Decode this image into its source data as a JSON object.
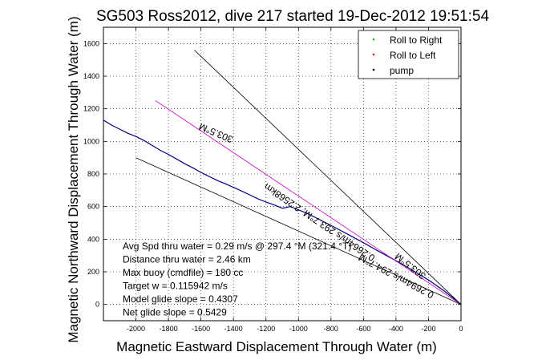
{
  "chart_data": {
    "type": "line",
    "title": "SG503 Ross2012, dive 217 started 19-Dec-2012 19:51:54",
    "xlabel": "Magnetic Eastward Displacement Through Water (m)",
    "ylabel": "Magnetic Northward Displacement Through Water (m)",
    "xlim": [
      -2200,
      0
    ],
    "ylim": [
      -100,
      1700
    ],
    "xticks": [
      -2000,
      -1800,
      -1600,
      -1400,
      -1200,
      -1000,
      -800,
      -600,
      -400,
      -200,
      0
    ],
    "yticks": [
      0,
      200,
      400,
      600,
      800,
      1000,
      1200,
      1400,
      1600
    ],
    "grid": true,
    "legend_position": "top-right",
    "legend": [
      {
        "label": "Roll to Right",
        "color": "#00cc00",
        "marker": "."
      },
      {
        "label": "Roll to Left",
        "color": "#ff0000",
        "marker": "."
      },
      {
        "label": "pump",
        "color": "#000000",
        "marker": "."
      }
    ],
    "series": [
      {
        "color": "#000080",
        "role": "track",
        "x": [
          -2200,
          -2150,
          -2100,
          -2050,
          -2000,
          -1950,
          -1900,
          -1850,
          -1800,
          -1750,
          -1700,
          -1650,
          -1600,
          -1550,
          -1500,
          -1450,
          -1400,
          -1350,
          -1300,
          -1250,
          -1200,
          -1150,
          -1100,
          -1050,
          -1000,
          -950,
          -900,
          -850,
          -800,
          -750,
          -700,
          -650,
          -600,
          -550,
          -500,
          -450,
          -400,
          -350,
          -300,
          -250,
          -200,
          -150,
          -100,
          -50,
          0
        ],
        "y": [
          1130,
          1100,
          1075,
          1050,
          1030,
          1005,
          975,
          945,
          920,
          892,
          863,
          838,
          810,
          785,
          760,
          740,
          718,
          695,
          672,
          648,
          628,
          610,
          590,
          600,
          580,
          560,
          535,
          510,
          485,
          458,
          432,
          405,
          378,
          350,
          322,
          295,
          268,
          240,
          210,
          180,
          150,
          115,
          80,
          40,
          0
        ]
      },
      {
        "color": "#cc00cc",
        "role": "heading",
        "x": [
          -1880,
          0
        ],
        "y": [
          1250,
          0
        ]
      },
      {
        "color": "#000000",
        "role": "heading",
        "x": [
          -1640,
          0
        ],
        "y": [
          1560,
          0
        ]
      },
      {
        "color": "#000000",
        "role": "heading",
        "x": [
          -2000,
          0
        ],
        "y": [
          900,
          0
        ]
      }
    ],
    "annotations": [
      {
        "text": "303.5°M",
        "x": -1500,
        "y": 1070,
        "angle": 23
      },
      {
        "text": "0.2664m/s 293.7°M, 2.2568km",
        "x": -860,
        "y": 520,
        "angle": 34
      },
      {
        "text": "303.5°M",
        "x": -300,
        "y": 250,
        "angle": 38
      },
      {
        "text": "0.2694m/s 294.7°M",
        "x": -390,
        "y": 190,
        "angle": 28
      }
    ],
    "stats": [
      "Avg Spd thru water =  0.29 m/s @ 297.4    °M (321.4 °T)",
      "Distance thru water =  2.46 km",
      "Max buoy (cmdfile) = 180 cc",
      "Target w = 0.115942 m/s",
      "Model glide slope = 0.4307",
      "Net glide slope = 0.5429"
    ]
  }
}
